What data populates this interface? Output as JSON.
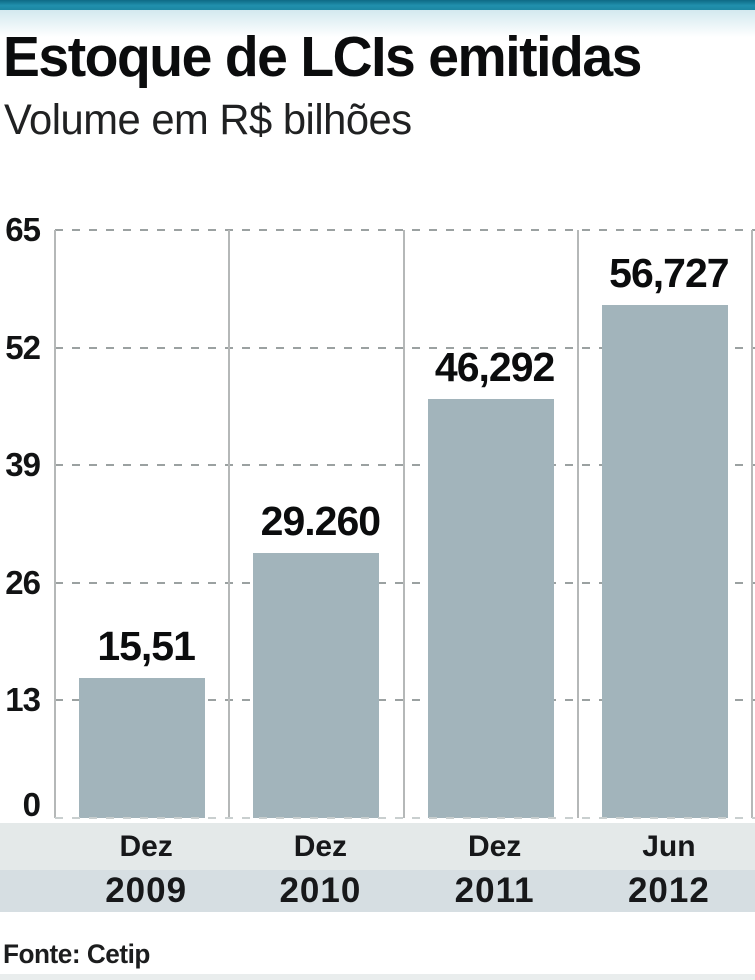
{
  "page": {
    "accent_color": "#1d87a3",
    "background": "#ffffff"
  },
  "header": {
    "title": "Estoque de LCIs emitidas",
    "subtitle": "Volume em R$ bilhões"
  },
  "footer": {
    "source": "Fonte: Cetip"
  },
  "chart_data": {
    "type": "bar",
    "title": "Estoque de LCIs emitidas",
    "subtitle": "Volume em R$ bilhões",
    "source": "Fonte: Cetip",
    "categories": [
      {
        "month": "Dez",
        "year": "2009"
      },
      {
        "month": "Dez",
        "year": "2010"
      },
      {
        "month": "Dez",
        "year": "2011"
      },
      {
        "month": "Jun",
        "year": "2012"
      }
    ],
    "values": [
      15.51,
      29.26,
      46.292,
      56.727
    ],
    "value_labels": [
      "15,51",
      "29.260",
      "46,292",
      "56,727"
    ],
    "yticks": [
      0,
      13,
      26,
      39,
      52,
      65
    ],
    "ylim": [
      0,
      65
    ],
    "grid": "dashed-horizontal",
    "legend": "none",
    "bar_color": "#a2b4bb"
  }
}
